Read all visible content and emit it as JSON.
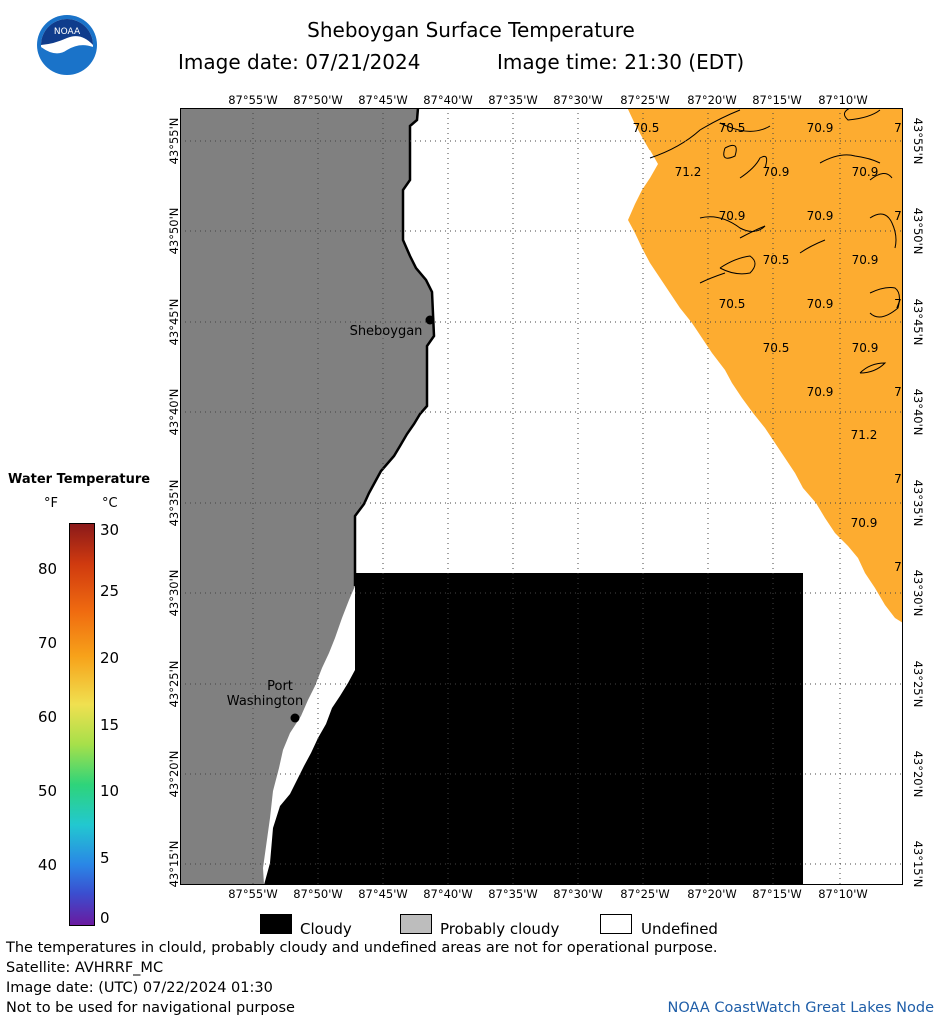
{
  "header": {
    "title": "Sheboygan Surface Temperature",
    "image_date": "Image date: 07/21/2024",
    "image_time": "Image time: 21:30 (EDT)",
    "logo_text": "NOAA"
  },
  "map": {
    "lon_ticks": [
      "87°55'W",
      "87°50'W",
      "87°45'W",
      "87°40'W",
      "87°35'W",
      "87°30'W",
      "87°25'W",
      "87°20'W",
      "87°15'W",
      "87°10'W"
    ],
    "lat_ticks": [
      "43°55'N",
      "43°50'N",
      "43°45'N",
      "43°40'N",
      "43°35'N",
      "43°30'N",
      "43°25'N",
      "43°20'N",
      "43°15'N"
    ],
    "places": [
      {
        "name": "Sheboygan"
      },
      {
        "name": "Port Washington"
      }
    ],
    "temperature_labels": [
      "70.5",
      "70.5",
      "70.9",
      "7",
      "71.2",
      "70.9",
      "70.9",
      "70.9",
      "70.9",
      "7",
      "70.5",
      "70.9",
      "70.5",
      "70.9",
      "7",
      "70.5",
      "70.9",
      "70.9",
      "7",
      "71.2",
      "7",
      "70.9",
      "7"
    ],
    "colors": {
      "land": "#808080",
      "cloudy": "#000000",
      "undefined": "#ffffff",
      "warm_water": "#fdac30",
      "grid": "#555555"
    }
  },
  "colorbar": {
    "title": "Water Temperature",
    "unit_f": "°F",
    "unit_c": "°C",
    "f_labels": [
      "80",
      "70",
      "60",
      "50",
      "40"
    ],
    "c_labels": [
      "30",
      "25",
      "20",
      "15",
      "10",
      "5",
      "0"
    ]
  },
  "legend": {
    "cloudy": "Cloudy",
    "probably_cloudy": "Probably cloudy",
    "undefined": "Undefined"
  },
  "footer": {
    "disclaimer": "The temperatures in clould, probably cloudy and undefined areas are not for operational purpose.",
    "satellite": "Satellite: AVHRRF_MC",
    "utc_date": "Image date: (UTC) 07/22/2024  01:30",
    "navigation": "Not to be used for navigational purpose",
    "credit": "NOAA CoastWatch Great Lakes Node"
  }
}
